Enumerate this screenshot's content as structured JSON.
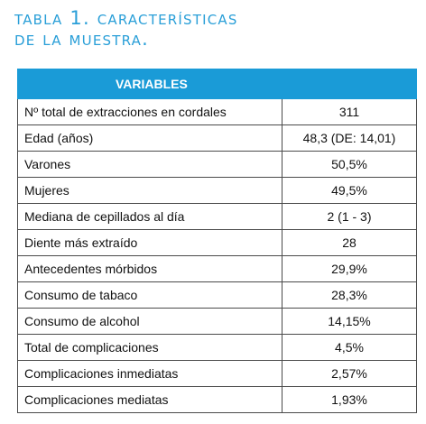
{
  "caption": {
    "line1": "Tabla 1. Características",
    "line2": "de la muestra."
  },
  "table": {
    "header": "VARIABLES",
    "rows": [
      {
        "label": "Nº total de extracciones en cordales",
        "value": "311"
      },
      {
        "label": "Edad (años)",
        "value": "48,3 (DE: 14,01)"
      },
      {
        "label": "Varones",
        "value": "50,5%"
      },
      {
        "label": "Mujeres",
        "value": "49,5%"
      },
      {
        "label": "Mediana de cepillados al día",
        "value": "2 (1 - 3)"
      },
      {
        "label": "Diente más extraído",
        "value": "28"
      },
      {
        "label": "Antecedentes mórbidos",
        "value": "29,9%"
      },
      {
        "label": "Consumo de tabaco",
        "value": "28,3%"
      },
      {
        "label": "Consumo de alcohol",
        "value": "14,15%"
      },
      {
        "label": "Total de complicaciones",
        "value": "4,5%"
      },
      {
        "label": "Complicaciones inmediatas",
        "value": "2,57%"
      },
      {
        "label": "Complicaciones mediatas",
        "value": "1,93%"
      }
    ]
  },
  "colors": {
    "accent": "#1a9bd7",
    "caption": "#2a9fd8",
    "border": "#4a4a4a"
  }
}
